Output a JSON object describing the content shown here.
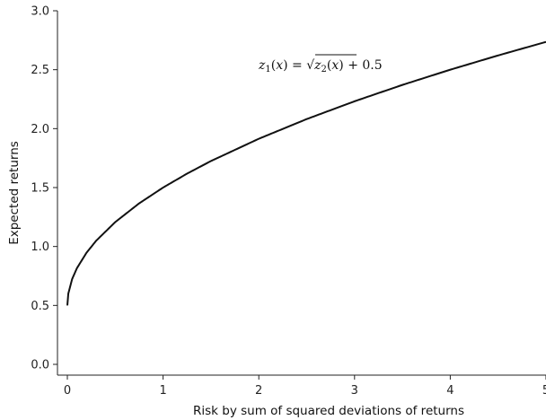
{
  "chart_data": {
    "type": "line",
    "xlabel": "Risk by sum of squared deviations of returns",
    "ylabel": "Expected returns",
    "xlim": [
      0,
      5
    ],
    "ylim": [
      0,
      3.0
    ],
    "x_ticks": [
      "0",
      "1",
      "2",
      "3",
      "4",
      "5"
    ],
    "y_ticks": [
      "0.0",
      "0.5",
      "1.0",
      "1.5",
      "2.0",
      "2.5",
      "3.0"
    ],
    "annotation": "z₁(x) = √z₂(x) + 0.5",
    "series": [
      {
        "x": [
          0,
          0.01,
          0.05,
          0.1,
          0.2,
          0.3,
          0.5,
          0.75,
          1.0,
          1.25,
          1.5,
          2.0,
          2.5,
          3.0,
          3.5,
          4.0,
          4.5,
          5.0
        ],
        "y": [
          0.5,
          0.6,
          0.724,
          0.816,
          0.947,
          1.048,
          1.207,
          1.366,
          1.5,
          1.618,
          1.725,
          1.914,
          2.081,
          2.232,
          2.371,
          2.5,
          2.621,
          2.736
        ]
      }
    ],
    "line_color": "#111111",
    "grid": false
  }
}
